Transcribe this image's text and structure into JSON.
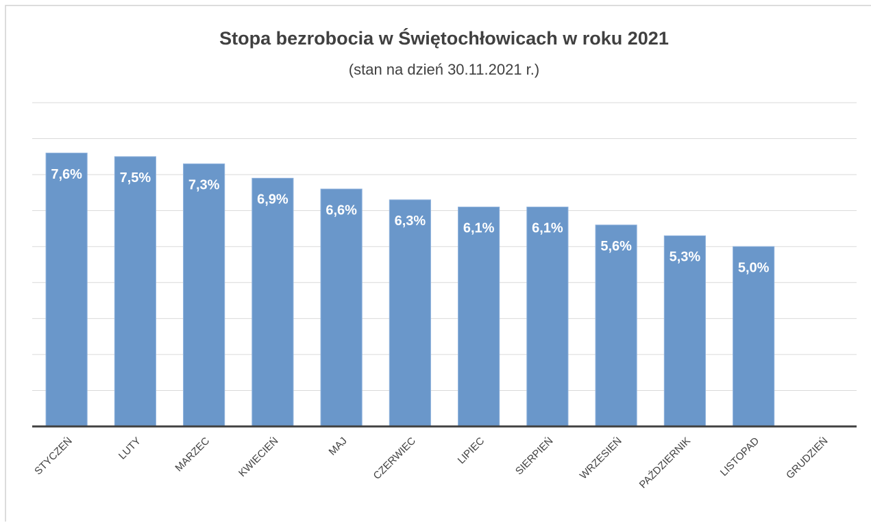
{
  "chart_data": {
    "type": "bar",
    "title": "Stopa bezrobocia w Świętochłowicach w roku 2021",
    "subtitle": "(stan na dzień 30.11.2021 r.)",
    "categories": [
      "STYCZEŃ",
      "LUTY",
      "MARZEC",
      "KWIECIEŃ",
      "MAJ",
      "CZERWIEC",
      "LIPIEC",
      "SIERPIEŃ",
      "WRZESIEŃ",
      "PAŹDZIERNIK",
      "LISTOPAD",
      "GRUDZIEŃ"
    ],
    "values": [
      7.6,
      7.5,
      7.3,
      6.9,
      6.6,
      6.3,
      6.1,
      6.1,
      5.6,
      5.3,
      5.0,
      null
    ],
    "value_labels": [
      "7,6%",
      "7,5%",
      "7,3%",
      "6,9%",
      "6,6%",
      "6,3%",
      "6,1%",
      "6,1%",
      "5,6%",
      "5,3%",
      "5,0%",
      null
    ],
    "color": "#6a97ca",
    "ylim": [
      0,
      9
    ],
    "yticks": [
      0,
      1,
      2,
      3,
      4,
      5,
      6,
      7,
      8,
      9
    ],
    "grid": true
  }
}
